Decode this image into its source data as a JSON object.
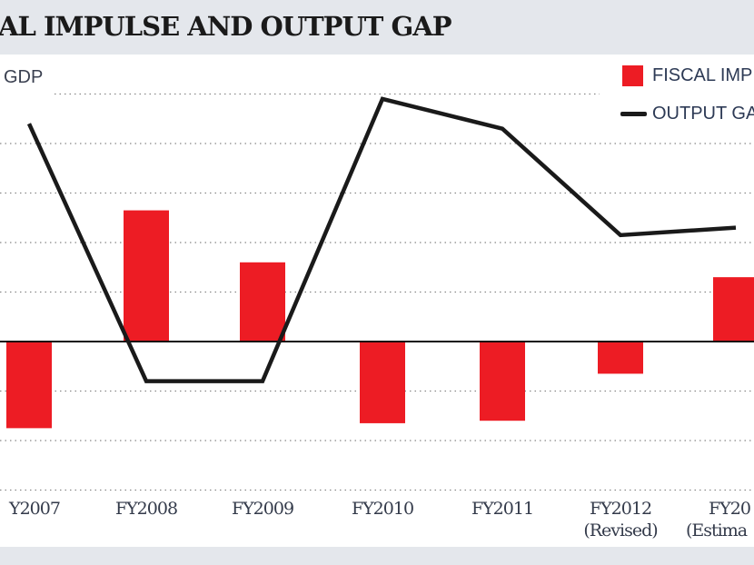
{
  "title": "AL IMPULSE AND OUTPUT GAP",
  "colors": {
    "bar": "#ed1c24",
    "line": "#1a1a1a",
    "band": "#e4e7ec"
  },
  "chart_data": {
    "type": "bar+line",
    "title": "AL IMPULSE AND OUTPUT GAP",
    "ylabel": "GDP",
    "categories": [
      [
        "Y2007"
      ],
      [
        "FY2008"
      ],
      [
        "FY2009"
      ],
      [
        "FY2010"
      ],
      [
        "FY2011"
      ],
      [
        "FY2012",
        "(Revised)"
      ],
      [
        "FY20",
        "(Estima"
      ]
    ],
    "series": [
      {
        "name": "FISCAL IMP",
        "type": "bar",
        "values": [
          -1.75,
          2.65,
          1.6,
          -1.65,
          -1.6,
          -0.65,
          1.3
        ]
      },
      {
        "name": "OUTPUT GA",
        "type": "line",
        "values": [
          4.4,
          -0.8,
          -0.8,
          4.9,
          4.3,
          2.15,
          2.3
        ]
      }
    ],
    "ylim": [
      -3,
      5
    ],
    "grid": true,
    "legend": "top-right"
  }
}
